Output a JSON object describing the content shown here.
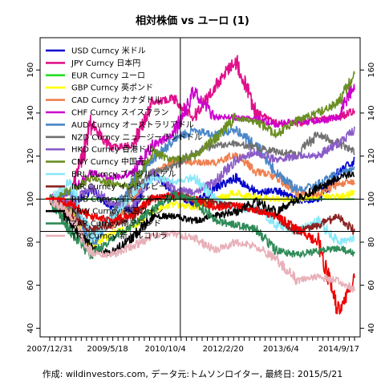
{
  "chart_data": {
    "type": "line",
    "title": "相対株価 vs ユーロ (1)",
    "caption": "作成: wildinvestors.com, データ元:トムソンロイター, 最終日: 2015/5/21",
    "x_tick_labels": [
      "2007/12/31",
      "2009/5/18",
      "2010/10/4",
      "2012/2/20",
      "2013/6/4",
      "2014/9/17"
    ],
    "x_domain": [
      "2007-12-31",
      "2015-05-21"
    ],
    "y_ticks": [
      40,
      60,
      80,
      100,
      120,
      140,
      160
    ],
    "ylim": [
      36,
      175
    ],
    "grid": false,
    "reference_lines": {
      "horizontal": [
        100,
        85
      ],
      "vertical_date": "2011-03-01"
    },
    "legend_position": "top-left",
    "series": [
      {
        "name": "USD Curncy 米ドル",
        "color": "#0000cc",
        "points": [
          [
            "2007-12-31",
            100
          ],
          [
            "2008-06-30",
            98
          ],
          [
            "2008-12-31",
            104
          ],
          [
            "2009-06-30",
            97
          ],
          [
            "2009-12-31",
            95
          ],
          [
            "2010-06-30",
            112
          ],
          [
            "2010-12-31",
            103
          ],
          [
            "2011-06-30",
            97
          ],
          [
            "2011-12-31",
            105
          ],
          [
            "2012-06-30",
            110
          ],
          [
            "2012-12-31",
            103
          ],
          [
            "2013-06-30",
            104
          ],
          [
            "2013-12-31",
            99
          ],
          [
            "2014-06-30",
            100
          ],
          [
            "2014-12-31",
            112
          ],
          [
            "2015-05-21",
            118
          ]
        ]
      },
      {
        "name": "JPY Curncy 日本円",
        "color": "#e0108a",
        "points": [
          [
            "2007-12-31",
            100
          ],
          [
            "2008-06-30",
            98
          ],
          [
            "2008-12-31",
            135
          ],
          [
            "2009-06-30",
            124
          ],
          [
            "2009-12-31",
            125
          ],
          [
            "2010-06-30",
            145
          ],
          [
            "2010-12-31",
            147
          ],
          [
            "2011-06-30",
            138
          ],
          [
            "2011-12-31",
            152
          ],
          [
            "2012-06-30",
            165
          ],
          [
            "2012-12-31",
            140
          ],
          [
            "2013-06-30",
            135
          ],
          [
            "2013-12-31",
            135
          ],
          [
            "2014-06-30",
            137
          ],
          [
            "2014-12-31",
            138
          ],
          [
            "2015-05-21",
            141
          ]
        ]
      },
      {
        "name": "EUR Curncy ユーロ",
        "color": "#22dd22",
        "points": [
          [
            "2007-12-31",
            100
          ],
          [
            "2015-05-21",
            100
          ]
        ]
      },
      {
        "name": "GBP Curncy 英ポンド",
        "color": "#ffff00",
        "points": [
          [
            "2007-12-31",
            100
          ],
          [
            "2008-06-30",
            94
          ],
          [
            "2008-12-31",
            78
          ],
          [
            "2009-06-30",
            84
          ],
          [
            "2009-12-31",
            87
          ],
          [
            "2010-06-30",
            95
          ],
          [
            "2010-12-31",
            98
          ],
          [
            "2011-06-30",
            96
          ],
          [
            "2011-12-31",
            99
          ],
          [
            "2012-06-30",
            103
          ],
          [
            "2012-12-31",
            101
          ],
          [
            "2013-06-30",
            100
          ],
          [
            "2013-12-31",
            100
          ],
          [
            "2014-06-30",
            102
          ],
          [
            "2014-12-31",
            101
          ],
          [
            "2015-05-21",
            103
          ]
        ]
      },
      {
        "name": "CAD Curncy カナダドル",
        "color": "#f08050",
        "points": [
          [
            "2007-12-31",
            100
          ],
          [
            "2008-06-30",
            97
          ],
          [
            "2008-12-31",
            85
          ],
          [
            "2009-06-30",
            88
          ],
          [
            "2009-12-31",
            100
          ],
          [
            "2010-06-30",
            112
          ],
          [
            "2010-12-31",
            118
          ],
          [
            "2011-06-30",
            117
          ],
          [
            "2011-12-31",
            117
          ],
          [
            "2012-06-30",
            121
          ],
          [
            "2012-12-31",
            113
          ],
          [
            "2013-06-30",
            110
          ],
          [
            "2013-12-31",
            103
          ],
          [
            "2014-06-30",
            102
          ],
          [
            "2014-12-31",
            107
          ],
          [
            "2015-05-21",
            108
          ]
        ]
      },
      {
        "name": "CHF Curncy スイスフラン",
        "color": "#cc00cc",
        "points": [
          [
            "2007-12-31",
            100
          ],
          [
            "2008-06-30",
            104
          ],
          [
            "2008-12-31",
            112
          ],
          [
            "2009-06-30",
            110
          ],
          [
            "2009-12-31",
            112
          ],
          [
            "2010-06-30",
            125
          ],
          [
            "2010-12-31",
            130
          ],
          [
            "2011-06-30",
            150
          ],
          [
            "2011-12-31",
            138
          ],
          [
            "2012-06-30",
            138
          ],
          [
            "2012-12-31",
            137
          ],
          [
            "2013-06-30",
            135
          ],
          [
            "2013-12-31",
            136
          ],
          [
            "2014-06-30",
            136
          ],
          [
            "2014-12-31",
            138
          ],
          [
            "2015-05-21",
            154
          ]
        ]
      },
      {
        "name": "AUD Curncy オーストラリアドル",
        "color": "#4a86c8",
        "points": [
          [
            "2007-12-31",
            100
          ],
          [
            "2008-06-30",
            103
          ],
          [
            "2008-12-31",
            78
          ],
          [
            "2009-06-30",
            92
          ],
          [
            "2009-12-31",
            108
          ],
          [
            "2010-06-30",
            118
          ],
          [
            "2010-12-31",
            128
          ],
          [
            "2011-06-30",
            132
          ],
          [
            "2011-12-31",
            130
          ],
          [
            "2012-06-30",
            132
          ],
          [
            "2012-12-31",
            125
          ],
          [
            "2013-06-30",
            112
          ],
          [
            "2013-12-31",
            104
          ],
          [
            "2014-06-30",
            107
          ],
          [
            "2014-12-31",
            112
          ],
          [
            "2015-05-21",
            114
          ]
        ]
      },
      {
        "name": "NZD Curncy ニュージーランドドル",
        "color": "#707070",
        "points": [
          [
            "2007-12-31",
            100
          ],
          [
            "2008-06-30",
            96
          ],
          [
            "2008-12-31",
            84
          ],
          [
            "2009-06-30",
            92
          ],
          [
            "2009-12-31",
            105
          ],
          [
            "2010-06-30",
            112
          ],
          [
            "2010-12-31",
            115
          ],
          [
            "2011-06-30",
            122
          ],
          [
            "2011-12-31",
            125
          ],
          [
            "2012-06-30",
            126
          ],
          [
            "2012-12-31",
            124
          ],
          [
            "2013-06-30",
            122
          ],
          [
            "2013-12-31",
            121
          ],
          [
            "2014-06-30",
            130
          ],
          [
            "2014-12-31",
            126
          ],
          [
            "2015-05-21",
            122
          ]
        ]
      },
      {
        "name": "HKD Curncy 香港ドル",
        "color": "#8a5cc8",
        "points": [
          [
            "2007-12-31",
            100
          ],
          [
            "2008-06-30",
            98
          ],
          [
            "2008-12-31",
            105
          ],
          [
            "2009-06-30",
            98
          ],
          [
            "2009-12-31",
            96
          ],
          [
            "2010-06-30",
            112
          ],
          [
            "2010-12-31",
            105
          ],
          [
            "2011-06-30",
            103
          ],
          [
            "2011-12-31",
            108
          ],
          [
            "2012-06-30",
            118
          ],
          [
            "2012-12-31",
            122
          ],
          [
            "2013-06-30",
            118
          ],
          [
            "2013-12-31",
            120
          ],
          [
            "2014-06-30",
            120
          ],
          [
            "2014-12-31",
            126
          ],
          [
            "2015-05-21",
            132
          ]
        ]
      },
      {
        "name": "CNY Curncy 中国元",
        "color": "#6b8e23",
        "points": [
          [
            "2007-12-31",
            100
          ],
          [
            "2008-06-30",
            104
          ],
          [
            "2008-12-31",
            110
          ],
          [
            "2009-06-30",
            107
          ],
          [
            "2009-12-31",
            106
          ],
          [
            "2010-06-30",
            122
          ],
          [
            "2010-12-31",
            118
          ],
          [
            "2011-06-30",
            120
          ],
          [
            "2011-12-31",
            128
          ],
          [
            "2012-06-30",
            138
          ],
          [
            "2012-12-31",
            136
          ],
          [
            "2013-06-30",
            130
          ],
          [
            "2013-12-31",
            137
          ],
          [
            "2014-06-30",
            140
          ],
          [
            "2014-12-31",
            145
          ],
          [
            "2015-05-21",
            158
          ]
        ]
      },
      {
        "name": "BRL Curncy ブラジルレアル",
        "color": "#88e8f8",
        "points": [
          [
            "2007-12-31",
            100
          ],
          [
            "2008-06-30",
            108
          ],
          [
            "2008-12-31",
            82
          ],
          [
            "2009-06-30",
            90
          ],
          [
            "2009-12-31",
            102
          ],
          [
            "2010-06-30",
            110
          ],
          [
            "2010-12-31",
            108
          ],
          [
            "2011-06-30",
            110
          ],
          [
            "2011-12-31",
            100
          ],
          [
            "2012-06-30",
            95
          ],
          [
            "2012-12-31",
            96
          ],
          [
            "2013-06-30",
            88
          ],
          [
            "2013-12-31",
            85
          ],
          [
            "2014-06-30",
            90
          ],
          [
            "2014-12-31",
            80
          ],
          [
            "2015-05-21",
            82
          ]
        ]
      },
      {
        "name": "INR Curncy インドルピー",
        "color": "#8b2020",
        "points": [
          [
            "2007-12-31",
            100
          ],
          [
            "2008-06-30",
            92
          ],
          [
            "2008-12-31",
            86
          ],
          [
            "2009-06-30",
            88
          ],
          [
            "2009-12-31",
            92
          ],
          [
            "2010-06-30",
            100
          ],
          [
            "2010-12-31",
            102
          ],
          [
            "2011-06-30",
            100
          ],
          [
            "2011-12-31",
            98
          ],
          [
            "2012-06-30",
            97
          ],
          [
            "2012-12-31",
            95
          ],
          [
            "2013-06-30",
            92
          ],
          [
            "2013-12-31",
            85
          ],
          [
            "2014-06-30",
            88
          ],
          [
            "2014-12-31",
            92
          ],
          [
            "2015-05-21",
            85
          ]
        ]
      },
      {
        "name": "RUB Curncy ロシアルーブル",
        "color": "#ee0000",
        "points": [
          [
            "2007-12-31",
            100
          ],
          [
            "2008-06-30",
            98
          ],
          [
            "2008-12-31",
            92
          ],
          [
            "2009-06-30",
            90
          ],
          [
            "2009-12-31",
            93
          ],
          [
            "2010-06-30",
            100
          ],
          [
            "2010-12-31",
            102
          ],
          [
            "2011-06-30",
            100
          ],
          [
            "2011-12-31",
            96
          ],
          [
            "2012-06-30",
            97
          ],
          [
            "2012-12-31",
            95
          ],
          [
            "2013-06-30",
            92
          ],
          [
            "2013-12-31",
            86
          ],
          [
            "2014-06-30",
            80
          ],
          [
            "2014-12-31",
            47
          ],
          [
            "2015-05-21",
            64
          ]
        ]
      },
      {
        "name": "KRW Curncy 韓国ウォン",
        "color": "#000000",
        "points": [
          [
            "2007-12-31",
            100
          ],
          [
            "2008-06-30",
            88
          ],
          [
            "2008-12-31",
            78
          ],
          [
            "2009-06-30",
            75
          ],
          [
            "2009-12-31",
            82
          ],
          [
            "2010-06-30",
            92
          ],
          [
            "2010-12-31",
            92
          ],
          [
            "2011-06-30",
            90
          ],
          [
            "2011-12-31",
            92
          ],
          [
            "2012-06-30",
            94
          ],
          [
            "2012-12-31",
            99
          ],
          [
            "2013-06-30",
            94
          ],
          [
            "2013-12-31",
            100
          ],
          [
            "2014-06-30",
            105
          ],
          [
            "2014-12-31",
            110
          ],
          [
            "2015-05-21",
            112
          ]
        ]
      },
      {
        "name": "ZAR Curncy 南アランド",
        "color": "#2e8b57",
        "points": [
          [
            "2007-12-31",
            100
          ],
          [
            "2008-06-30",
            85
          ],
          [
            "2008-12-31",
            74
          ],
          [
            "2009-06-30",
            82
          ],
          [
            "2009-12-31",
            88
          ],
          [
            "2010-06-30",
            95
          ],
          [
            "2010-12-31",
            102
          ],
          [
            "2011-06-30",
            100
          ],
          [
            "2011-12-31",
            90
          ],
          [
            "2012-06-30",
            88
          ],
          [
            "2012-12-31",
            86
          ],
          [
            "2013-06-30",
            76
          ],
          [
            "2013-12-31",
            74
          ],
          [
            "2014-06-30",
            76
          ],
          [
            "2014-12-31",
            77
          ],
          [
            "2015-05-21",
            75
          ]
        ]
      },
      {
        "name": "TRY Curncy 新トルコリラ",
        "color": "#e8b0b8",
        "points": [
          [
            "2007-12-31",
            100
          ],
          [
            "2008-06-30",
            93
          ],
          [
            "2008-12-31",
            75
          ],
          [
            "2009-06-30",
            74
          ],
          [
            "2009-12-31",
            78
          ],
          [
            "2010-06-30",
            83
          ],
          [
            "2010-12-31",
            84
          ],
          [
            "2011-06-30",
            82
          ],
          [
            "2011-12-31",
            76
          ],
          [
            "2012-06-30",
            80
          ],
          [
            "2012-12-31",
            78
          ],
          [
            "2013-06-30",
            72
          ],
          [
            "2013-12-31",
            62
          ],
          [
            "2014-06-30",
            64
          ],
          [
            "2014-12-31",
            62
          ],
          [
            "2015-05-21",
            58
          ]
        ]
      }
    ]
  }
}
